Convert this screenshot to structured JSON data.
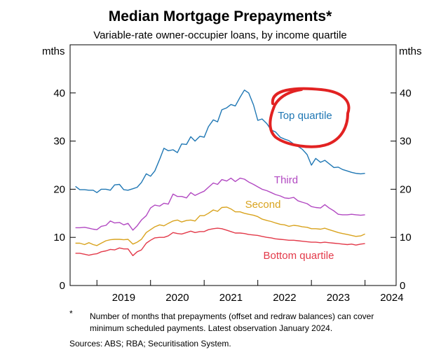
{
  "chart_data": {
    "type": "line",
    "title": "Median Mortgage Prepayments*",
    "subtitle": "Variable-rate owner-occupier loans, by income quartile",
    "ylabel_left": "mths",
    "ylabel_right": "mths",
    "ylim": [
      0,
      50
    ],
    "yticks": [
      0,
      10,
      20,
      30,
      40
    ],
    "xlim": [
      2018.5,
      2024.58
    ],
    "xtick_labels": [
      "2019",
      "2020",
      "2021",
      "2022",
      "2023",
      "2024"
    ],
    "grid": false,
    "series": [
      {
        "name": "Top quartile",
        "color": "#1f77b4",
        "x": [
          2018.6,
          2018.68,
          2018.77,
          2018.85,
          2018.93,
          2019.0,
          2019.08,
          2019.17,
          2019.25,
          2019.33,
          2019.42,
          2019.5,
          2019.58,
          2019.67,
          2019.75,
          2019.83,
          2019.92,
          2020.0,
          2020.08,
          2020.17,
          2020.25,
          2020.33,
          2020.42,
          2020.5,
          2020.58,
          2020.67,
          2020.75,
          2020.83,
          2020.92,
          2021.0,
          2021.08,
          2021.17,
          2021.25,
          2021.33,
          2021.42,
          2021.5,
          2021.58,
          2021.67,
          2021.75,
          2021.83,
          2021.92,
          2022.0,
          2022.08,
          2022.17,
          2022.25,
          2022.33,
          2022.42,
          2022.5,
          2022.58,
          2022.67,
          2022.75,
          2022.83,
          2022.92,
          2023.0,
          2023.08,
          2023.17,
          2023.25,
          2023.33,
          2023.42,
          2023.5,
          2023.58,
          2023.67,
          2023.75,
          2023.83,
          2023.92,
          2024.0
        ],
        "values": [
          20.6,
          19.9,
          19.9,
          19.8,
          19.8,
          19.3,
          20.0,
          20.0,
          19.8,
          20.9,
          21.0,
          19.9,
          19.8,
          20.1,
          20.4,
          21.4,
          23.2,
          22.7,
          23.8,
          26.2,
          28.5,
          28.0,
          28.2,
          27.6,
          29.4,
          29.3,
          30.9,
          30.0,
          31.0,
          30.8,
          33.0,
          34.4,
          34.0,
          36.5,
          36.9,
          37.6,
          37.3,
          39.1,
          40.6,
          40.0,
          37.5,
          34.3,
          34.6,
          33.6,
          32.3,
          31.9,
          30.8,
          30.4,
          30.1,
          29.4,
          28.9,
          28.3,
          27.2,
          25.0,
          26.4,
          25.6,
          26.0,
          25.3,
          24.5,
          24.6,
          24.1,
          23.8,
          23.5,
          23.3,
          23.2,
          23.3
        ]
      },
      {
        "name": "Third",
        "color": "#b249c2",
        "x": [
          2018.6,
          2018.68,
          2018.77,
          2018.85,
          2018.93,
          2019.0,
          2019.08,
          2019.17,
          2019.25,
          2019.33,
          2019.42,
          2019.5,
          2019.58,
          2019.67,
          2019.75,
          2019.83,
          2019.92,
          2020.0,
          2020.08,
          2020.17,
          2020.25,
          2020.33,
          2020.42,
          2020.5,
          2020.58,
          2020.67,
          2020.75,
          2020.83,
          2020.92,
          2021.0,
          2021.08,
          2021.17,
          2021.25,
          2021.33,
          2021.42,
          2021.5,
          2021.58,
          2021.67,
          2021.75,
          2021.83,
          2021.92,
          2022.0,
          2022.08,
          2022.17,
          2022.25,
          2022.33,
          2022.42,
          2022.5,
          2022.58,
          2022.67,
          2022.75,
          2022.83,
          2022.92,
          2023.0,
          2023.08,
          2023.17,
          2023.25,
          2023.33,
          2023.42,
          2023.5,
          2023.58,
          2023.67,
          2023.75,
          2023.83,
          2023.92,
          2024.0
        ],
        "values": [
          12.0,
          12.0,
          12.1,
          11.9,
          11.7,
          11.6,
          12.3,
          12.5,
          13.4,
          13.0,
          13.1,
          12.6,
          12.9,
          11.5,
          12.4,
          13.6,
          14.5,
          16.1,
          16.7,
          16.5,
          17.1,
          16.9,
          19.0,
          18.5,
          18.5,
          18.2,
          19.3,
          18.7,
          19.2,
          19.6,
          20.4,
          21.3,
          21.0,
          22.0,
          21.7,
          22.3,
          21.6,
          22.3,
          22.1,
          21.5,
          21.0,
          20.5,
          20.0,
          19.7,
          19.3,
          18.9,
          18.6,
          18.2,
          18.1,
          18.3,
          17.6,
          17.3,
          17.0,
          16.4,
          16.2,
          16.1,
          16.8,
          16.1,
          15.5,
          14.8,
          14.7,
          14.7,
          14.8,
          14.7,
          14.6,
          14.7
        ]
      },
      {
        "name": "Second",
        "color": "#d9a31e",
        "x": [
          2018.6,
          2018.68,
          2018.77,
          2018.85,
          2018.93,
          2019.0,
          2019.08,
          2019.17,
          2019.25,
          2019.33,
          2019.42,
          2019.5,
          2019.58,
          2019.67,
          2019.75,
          2019.83,
          2019.92,
          2020.0,
          2020.08,
          2020.17,
          2020.25,
          2020.33,
          2020.42,
          2020.5,
          2020.58,
          2020.67,
          2020.75,
          2020.83,
          2020.92,
          2021.0,
          2021.08,
          2021.17,
          2021.25,
          2021.33,
          2021.42,
          2021.5,
          2021.58,
          2021.67,
          2021.75,
          2021.83,
          2021.92,
          2022.0,
          2022.08,
          2022.17,
          2022.25,
          2022.33,
          2022.42,
          2022.5,
          2022.58,
          2022.67,
          2022.75,
          2022.83,
          2022.92,
          2023.0,
          2023.08,
          2023.17,
          2023.25,
          2023.33,
          2023.42,
          2023.5,
          2023.58,
          2023.67,
          2023.75,
          2023.83,
          2023.92,
          2024.0
        ],
        "values": [
          8.8,
          8.8,
          8.5,
          8.9,
          8.5,
          8.3,
          8.8,
          9.3,
          9.5,
          9.6,
          9.6,
          9.5,
          9.6,
          8.6,
          9.0,
          9.6,
          11.0,
          11.6,
          12.2,
          12.6,
          12.4,
          12.9,
          13.4,
          13.6,
          13.2,
          13.5,
          13.6,
          13.4,
          14.5,
          14.5,
          15.0,
          15.7,
          15.4,
          16.2,
          16.3,
          15.9,
          15.3,
          15.3,
          15.0,
          14.8,
          14.6,
          14.3,
          13.8,
          13.5,
          13.3,
          13.0,
          12.7,
          12.6,
          12.3,
          12.5,
          12.4,
          12.2,
          12.1,
          11.8,
          11.8,
          11.7,
          11.9,
          11.6,
          11.3,
          11.0,
          10.8,
          10.6,
          10.4,
          10.2,
          10.3,
          10.7
        ]
      },
      {
        "name": "Bottom quartile",
        "color": "#e33a4a",
        "x": [
          2018.6,
          2018.68,
          2018.77,
          2018.85,
          2018.93,
          2019.0,
          2019.08,
          2019.17,
          2019.25,
          2019.33,
          2019.42,
          2019.5,
          2019.58,
          2019.67,
          2019.75,
          2019.83,
          2019.92,
          2020.0,
          2020.08,
          2020.17,
          2020.25,
          2020.33,
          2020.42,
          2020.5,
          2020.58,
          2020.67,
          2020.75,
          2020.83,
          2020.92,
          2021.0,
          2021.08,
          2021.17,
          2021.25,
          2021.33,
          2021.42,
          2021.5,
          2021.58,
          2021.67,
          2021.75,
          2021.83,
          2021.92,
          2022.0,
          2022.08,
          2022.17,
          2022.25,
          2022.33,
          2022.42,
          2022.5,
          2022.58,
          2022.67,
          2022.75,
          2022.83,
          2022.92,
          2023.0,
          2023.08,
          2023.17,
          2023.25,
          2023.33,
          2023.42,
          2023.5,
          2023.58,
          2023.67,
          2023.75,
          2023.83,
          2023.92,
          2024.0
        ],
        "values": [
          6.7,
          6.7,
          6.5,
          6.3,
          6.5,
          6.6,
          7.0,
          7.2,
          7.5,
          7.4,
          7.8,
          7.6,
          7.6,
          6.2,
          7.0,
          7.4,
          8.8,
          9.4,
          9.9,
          10.0,
          10.0,
          10.3,
          11.0,
          10.8,
          10.7,
          11.0,
          11.3,
          11.0,
          11.2,
          11.2,
          11.6,
          11.8,
          11.9,
          11.8,
          11.5,
          11.2,
          10.9,
          10.9,
          10.8,
          10.6,
          10.5,
          10.4,
          10.2,
          10.0,
          9.9,
          9.7,
          9.6,
          9.5,
          9.4,
          9.4,
          9.3,
          9.2,
          9.1,
          9.0,
          9.0,
          8.9,
          9.0,
          8.9,
          8.8,
          8.7,
          8.6,
          8.5,
          8.6,
          8.4,
          8.6,
          8.7
        ]
      }
    ],
    "annotation": {
      "type": "hand-drawn-circle",
      "color": "#e22222",
      "around": "Top quartile"
    }
  },
  "footnote": {
    "marker": "*",
    "text": "Number of months that prepayments (offset and redraw balances) can cover minimum scheduled payments. Latest observation January 2024."
  },
  "sources": "Sources: ABS; RBA; Securitisation System."
}
